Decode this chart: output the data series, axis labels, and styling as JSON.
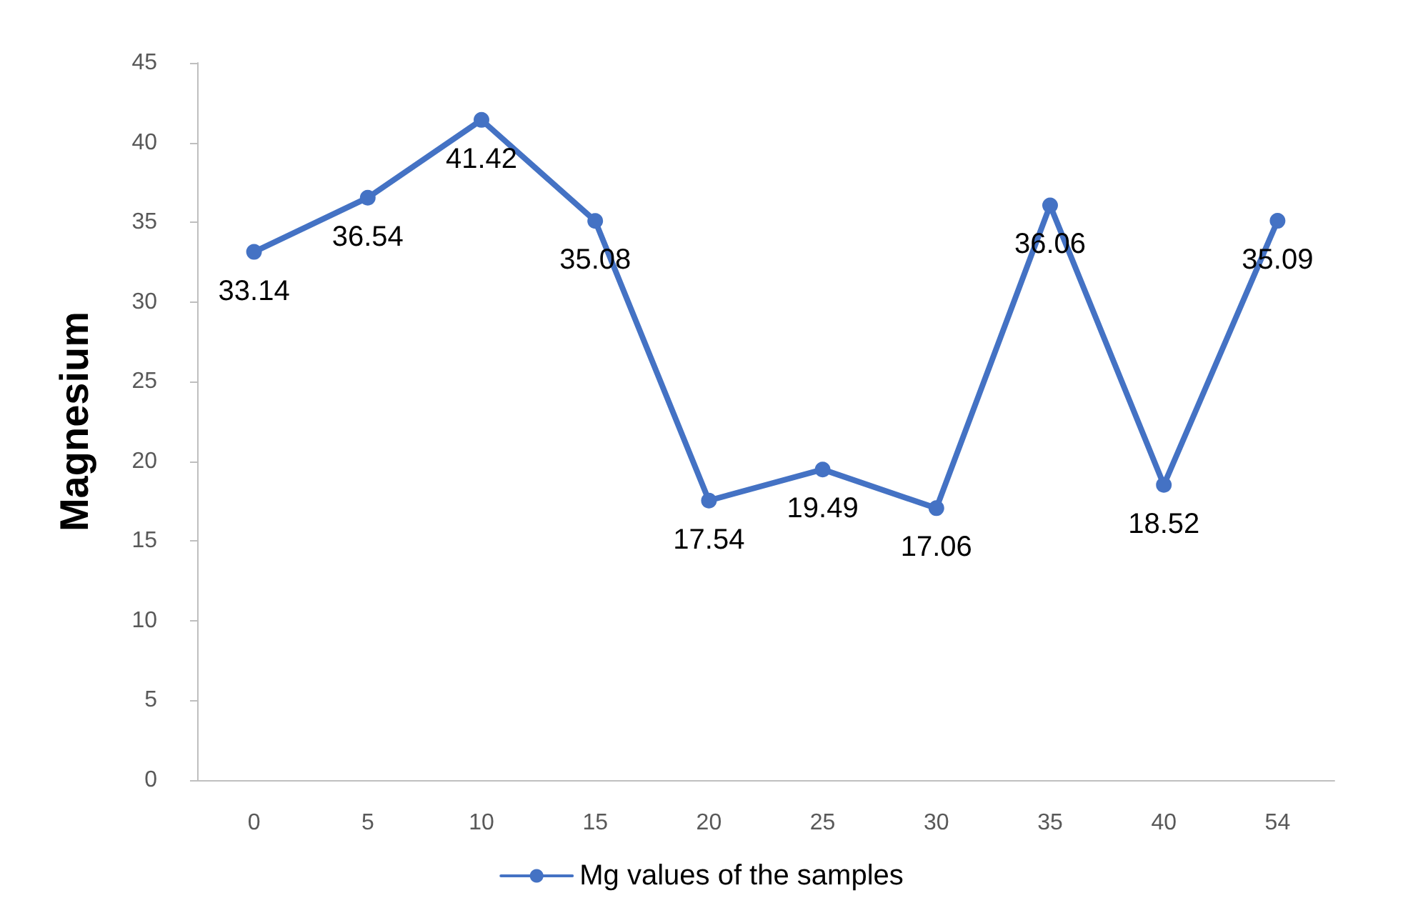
{
  "chart_data": {
    "type": "line",
    "ylabel": "Magnesium",
    "categories": [
      "0",
      "5",
      "10",
      "15",
      "20",
      "25",
      "30",
      "35",
      "40",
      "54"
    ],
    "series": [
      {
        "name": "Mg values of the samples",
        "color": "#4472c4",
        "values": [
          33.14,
          36.54,
          41.42,
          35.08,
          17.54,
          19.49,
          17.06,
          36.06,
          18.52,
          35.09
        ]
      }
    ],
    "ylim": [
      0,
      45
    ],
    "yticks": [
      0,
      5,
      10,
      15,
      20,
      25,
      30,
      35,
      40,
      45
    ],
    "grid": false,
    "legend": "bottom",
    "marker": "circle",
    "line_style": "solid",
    "data_labels": true
  }
}
